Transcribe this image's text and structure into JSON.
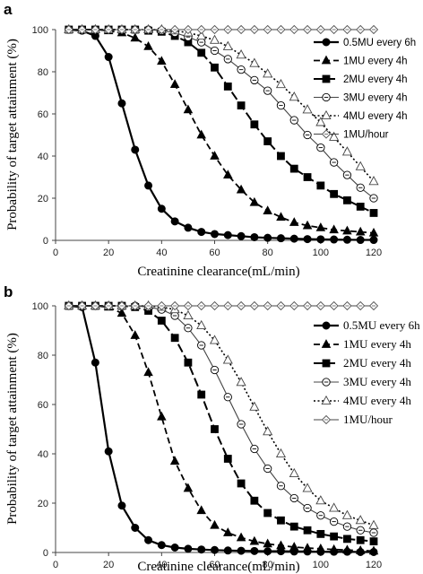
{
  "panels": [
    {
      "letter": "a",
      "xlabel": "Creatinine clearance(mL/min)",
      "ylabel": "Probability of target attainment (%)"
    },
    {
      "letter": "b",
      "xlabel": "Creatinine clearance(mL/min)",
      "ylabel": "Probability of target attainment (%)"
    }
  ],
  "chart_data": [
    {
      "type": "line",
      "panel": "a",
      "xlabel": "Creatinine clearance(mL/min)",
      "ylabel": "Probability of target attainment (%)",
      "xlim": [
        0,
        120
      ],
      "ylim": [
        0,
        100
      ],
      "xticks": [
        0,
        20,
        40,
        60,
        80,
        100,
        120
      ],
      "yticks": [
        0,
        20,
        40,
        60,
        80,
        100
      ],
      "grid": false,
      "legend_position": "right",
      "series": [
        {
          "name": "0.5MU every 6h",
          "marker": "filled-circle",
          "line": "solid",
          "color": "#000000",
          "x": [
            5,
            10,
            15,
            20,
            25,
            30,
            35,
            40,
            45,
            50,
            55,
            60,
            65,
            70,
            75,
            80,
            85,
            90,
            95,
            100,
            105,
            110,
            115,
            120
          ],
          "y": [
            100,
            99.5,
            97,
            87,
            65,
            43,
            26,
            15,
            9,
            6,
            4,
            3,
            2.5,
            2,
            1.5,
            1.2,
            1,
            0.8,
            0.6,
            0.5,
            0.4,
            0.3,
            0.2,
            0.2
          ]
        },
        {
          "name": "1MU every 4h",
          "marker": "filled-triangle",
          "line": "dashed",
          "color": "#000000",
          "x": [
            5,
            10,
            15,
            20,
            25,
            30,
            35,
            40,
            45,
            50,
            55,
            60,
            65,
            70,
            75,
            80,
            85,
            90,
            95,
            100,
            105,
            110,
            115,
            120
          ],
          "y": [
            100,
            100,
            100,
            99.5,
            98.5,
            96,
            92,
            85,
            74,
            62,
            50,
            40,
            31,
            24,
            18,
            14,
            11,
            8.5,
            7,
            6,
            5,
            4.5,
            4,
            3.5
          ]
        },
        {
          "name": "2MU every 4h",
          "marker": "filled-square",
          "line": "long-dash",
          "color": "#000000",
          "x": [
            5,
            10,
            15,
            20,
            25,
            30,
            35,
            40,
            45,
            50,
            55,
            60,
            65,
            70,
            75,
            80,
            85,
            90,
            95,
            100,
            105,
            110,
            115,
            120
          ],
          "y": [
            100,
            100,
            100,
            100,
            100,
            100,
            99.5,
            99,
            97,
            94,
            89,
            82,
            73,
            64,
            55,
            47,
            40,
            34,
            30,
            26,
            22,
            19,
            16,
            13
          ]
        },
        {
          "name": "3MU every 4h",
          "marker": "open-circle",
          "line": "solid-thin",
          "color": "#000000",
          "x": [
            5,
            10,
            15,
            20,
            25,
            30,
            35,
            40,
            45,
            50,
            55,
            60,
            65,
            70,
            75,
            80,
            85,
            90,
            95,
            100,
            105,
            110,
            115,
            120
          ],
          "y": [
            100,
            100,
            100,
            100,
            100,
            100,
            100,
            99.5,
            98.5,
            96.5,
            94,
            90,
            86,
            81,
            76,
            71,
            64,
            57,
            50,
            44,
            37,
            31,
            25,
            20
          ]
        },
        {
          "name": "4MU every 4h",
          "marker": "open-triangle",
          "line": "dotted",
          "color": "#000000",
          "x": [
            5,
            10,
            15,
            20,
            25,
            30,
            35,
            40,
            45,
            50,
            55,
            60,
            65,
            70,
            75,
            80,
            85,
            90,
            95,
            100,
            105,
            110,
            115,
            120
          ],
          "y": [
            100,
            100,
            100,
            100,
            100,
            100,
            100,
            100,
            99.5,
            98.5,
            97,
            95,
            92,
            88,
            84,
            79,
            74,
            68,
            62,
            56,
            49,
            42,
            35,
            28
          ]
        },
        {
          "name": "1MU/hour",
          "marker": "open-diamond",
          "line": "solid-thin",
          "color": "#000000",
          "x": [
            5,
            10,
            15,
            20,
            25,
            30,
            35,
            40,
            45,
            50,
            55,
            60,
            65,
            70,
            75,
            80,
            85,
            90,
            95,
            100,
            105,
            110,
            115,
            120
          ],
          "y": [
            100,
            100,
            100,
            100,
            100,
            100,
            100,
            100,
            100,
            100,
            100,
            100,
            100,
            100,
            100,
            100,
            100,
            100,
            100,
            100,
            100,
            100,
            100,
            100
          ]
        }
      ]
    },
    {
      "type": "line",
      "panel": "b",
      "xlabel": "Creatinine clearance(mL/min)",
      "ylabel": "Probability of target attainment (%)",
      "xlim": [
        0,
        120
      ],
      "ylim": [
        0,
        100
      ],
      "xticks": [
        0,
        20,
        40,
        60,
        80,
        100,
        120
      ],
      "yticks": [
        0,
        20,
        40,
        60,
        80,
        100
      ],
      "grid": false,
      "legend_position": "right",
      "series": [
        {
          "name": "0.5MU every 6h",
          "marker": "filled-circle",
          "line": "solid",
          "color": "#000000",
          "x": [
            5,
            10,
            15,
            20,
            25,
            30,
            35,
            40,
            45,
            50,
            55,
            60,
            65,
            70,
            75,
            80,
            85,
            90,
            95,
            100,
            105,
            110,
            115,
            120
          ],
          "y": [
            100,
            99.5,
            77,
            41,
            19,
            10,
            5,
            3,
            2,
            1.5,
            1.2,
            1,
            0.8,
            0.7,
            0.6,
            0.5,
            0.5,
            0.4,
            0.4,
            0.3,
            0.3,
            0.3,
            0.2,
            0.2
          ]
        },
        {
          "name": "1MU every 4h",
          "marker": "filled-triangle",
          "line": "dashed",
          "color": "#000000",
          "x": [
            5,
            10,
            15,
            20,
            25,
            30,
            35,
            40,
            45,
            50,
            55,
            60,
            65,
            70,
            75,
            80,
            85,
            90,
            95,
            100,
            105,
            110,
            115,
            120
          ],
          "y": [
            100,
            100,
            100,
            99.5,
            97,
            88,
            73,
            55,
            37,
            26,
            17,
            11,
            8,
            6,
            4.5,
            3.5,
            2.8,
            2.2,
            1.8,
            1.5,
            1.2,
            1,
            0.8,
            0.6
          ]
        },
        {
          "name": "2MU every 4h",
          "marker": "filled-square",
          "line": "long-dash",
          "color": "#000000",
          "x": [
            5,
            10,
            15,
            20,
            25,
            30,
            35,
            40,
            45,
            50,
            55,
            60,
            65,
            70,
            75,
            80,
            85,
            90,
            95,
            100,
            105,
            110,
            115,
            120
          ],
          "y": [
            100,
            100,
            100,
            100,
            100,
            99.5,
            98,
            94,
            87,
            77,
            64,
            50,
            38,
            28,
            21,
            16,
            13,
            10.5,
            9,
            7.5,
            6.5,
            5.5,
            5,
            4.5
          ]
        },
        {
          "name": "3MU every 4h",
          "marker": "open-circle",
          "line": "solid-thin",
          "color": "#000000",
          "x": [
            5,
            10,
            15,
            20,
            25,
            30,
            35,
            40,
            45,
            50,
            55,
            60,
            65,
            70,
            75,
            80,
            85,
            90,
            95,
            100,
            105,
            110,
            115,
            120
          ],
          "y": [
            100,
            100,
            100,
            100,
            100,
            100,
            99.5,
            98.5,
            96,
            91,
            84,
            74,
            63,
            52,
            42,
            34,
            27,
            22,
            18,
            15,
            12.5,
            10.5,
            9,
            8
          ]
        },
        {
          "name": "4MU every 4h",
          "marker": "open-triangle",
          "line": "dotted",
          "color": "#000000",
          "x": [
            5,
            10,
            15,
            20,
            25,
            30,
            35,
            40,
            45,
            50,
            55,
            60,
            65,
            70,
            75,
            80,
            85,
            90,
            95,
            100,
            105,
            110,
            115,
            120
          ],
          "y": [
            100,
            100,
            100,
            100,
            100,
            100,
            100,
            99.5,
            98.5,
            96,
            92,
            86,
            78,
            69,
            59,
            49,
            40,
            32,
            26,
            21,
            18,
            15,
            13,
            11
          ]
        },
        {
          "name": "1MU/hour",
          "marker": "open-diamond",
          "line": "solid-thin",
          "color": "#000000",
          "x": [
            5,
            10,
            15,
            20,
            25,
            30,
            35,
            40,
            45,
            50,
            55,
            60,
            65,
            70,
            75,
            80,
            85,
            90,
            95,
            100,
            105,
            110,
            115,
            120
          ],
          "y": [
            100,
            100,
            100,
            100,
            100,
            100,
            100,
            100,
            100,
            100,
            100,
            100,
            100,
            100,
            100,
            100,
            100,
            100,
            100,
            100,
            100,
            100,
            100,
            100
          ]
        }
      ]
    }
  ]
}
